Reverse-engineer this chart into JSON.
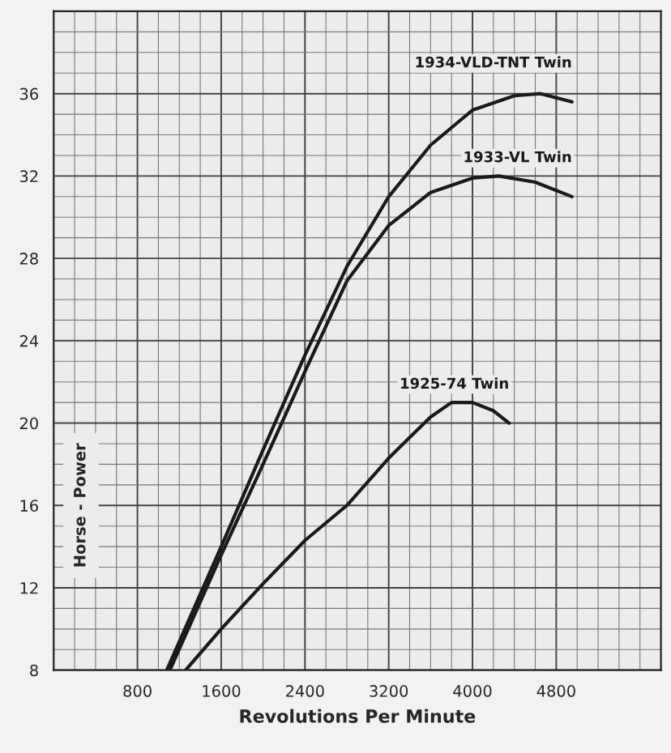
{
  "chart_data": {
    "type": "line",
    "xlabel": "Revolutions Per Minute",
    "ylabel": "Horse - Power",
    "xlim": [
      0,
      5800
    ],
    "ylim": [
      8,
      40
    ],
    "xticks": [
      800,
      1600,
      2400,
      3200,
      4000,
      4800
    ],
    "yticks": [
      8,
      12,
      16,
      20,
      24,
      28,
      32,
      36
    ],
    "grid": true,
    "marker": "none",
    "line_style": "solid",
    "series": [
      {
        "name": "1934-VLD-TNT Twin",
        "color": "#1a1a1a",
        "x": [
          1080,
          1600,
          2000,
          2400,
          2800,
          3200,
          3600,
          4000,
          4400,
          4650,
          4950
        ],
        "values": [
          8,
          14.0,
          18.7,
          23.3,
          27.6,
          31.0,
          33.5,
          35.2,
          35.9,
          36.0,
          35.6
        ]
      },
      {
        "name": "1933-VL Twin",
        "color": "#1a1a1a",
        "x": [
          1110,
          1600,
          2000,
          2400,
          2800,
          3200,
          3600,
          4000,
          4250,
          4600,
          4950
        ],
        "values": [
          8,
          13.6,
          18.0,
          22.5,
          26.9,
          29.6,
          31.2,
          31.9,
          32.0,
          31.7,
          31.0
        ]
      },
      {
        "name": "1925-74 Twin",
        "color": "#1a1a1a",
        "x": [
          1260,
          1600,
          2000,
          2400,
          2800,
          3200,
          3600,
          3800,
          4000,
          4200,
          4350
        ],
        "values": [
          8,
          10.0,
          12.2,
          14.3,
          16.0,
          18.3,
          20.3,
          21.0,
          21.0,
          20.6,
          20.0
        ]
      }
    ]
  }
}
